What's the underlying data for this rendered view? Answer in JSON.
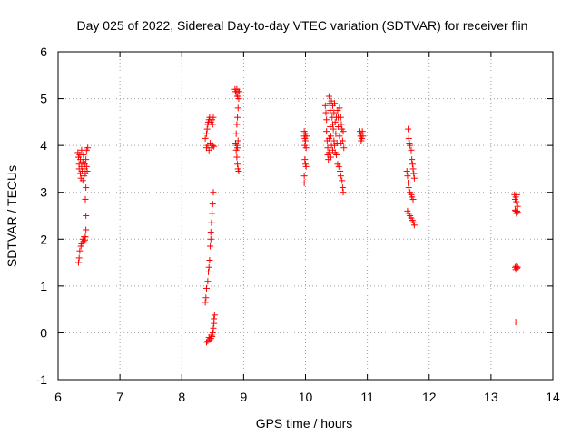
{
  "chart_data": {
    "type": "scatter",
    "title": "Day 025 of 2022, Sidereal Day-to-day VTEC variation (SDTVAR) for receiver flin",
    "xlabel": "GPS time / hours",
    "ylabel": "SDTVAR / TECUs",
    "xlim": [
      6,
      14
    ],
    "ylim": [
      -1,
      6
    ],
    "xticks": [
      "6",
      "7",
      "8",
      "9",
      "10",
      "11",
      "12",
      "13",
      "14"
    ],
    "yticks": [
      "-1",
      "0",
      "1",
      "2",
      "3",
      "4",
      "5",
      "6"
    ],
    "grid": true,
    "marker": "+",
    "color": "#ff0000",
    "series": [
      {
        "name": "SDTVAR",
        "points": [
          [
            6.32,
            3.85
          ],
          [
            6.33,
            3.75
          ],
          [
            6.34,
            3.6
          ],
          [
            6.34,
            3.5
          ],
          [
            6.35,
            3.8
          ],
          [
            6.36,
            3.4
          ],
          [
            6.36,
            3.7
          ],
          [
            6.37,
            3.3
          ],
          [
            6.38,
            3.55
          ],
          [
            6.38,
            3.9
          ],
          [
            6.39,
            3.45
          ],
          [
            6.4,
            3.65
          ],
          [
            6.4,
            3.25
          ],
          [
            6.41,
            3.8
          ],
          [
            6.42,
            3.5
          ],
          [
            6.42,
            3.35
          ],
          [
            6.43,
            3.6
          ],
          [
            6.44,
            3.4
          ],
          [
            6.45,
            3.7
          ],
          [
            6.46,
            3.9
          ],
          [
            6.46,
            3.55
          ],
          [
            6.47,
            3.45
          ],
          [
            6.48,
            3.95
          ],
          [
            6.45,
            3.1
          ],
          [
            6.44,
            2.85
          ],
          [
            6.45,
            2.5
          ],
          [
            6.45,
            2.2
          ],
          [
            6.44,
            2.05
          ],
          [
            6.43,
            1.98
          ],
          [
            6.42,
            2.05
          ],
          [
            6.41,
            1.95
          ],
          [
            6.4,
            2.0
          ],
          [
            6.38,
            1.9
          ],
          [
            6.37,
            1.85
          ],
          [
            6.35,
            1.75
          ],
          [
            6.34,
            1.6
          ],
          [
            6.33,
            1.5
          ],
          [
            8.38,
            0.65
          ],
          [
            8.39,
            0.75
          ],
          [
            8.4,
            0.95
          ],
          [
            8.42,
            1.1
          ],
          [
            8.43,
            1.3
          ],
          [
            8.44,
            1.4
          ],
          [
            8.45,
            1.55
          ],
          [
            8.46,
            1.85
          ],
          [
            8.47,
            2.0
          ],
          [
            8.47,
            2.15
          ],
          [
            8.48,
            2.35
          ],
          [
            8.49,
            2.55
          ],
          [
            8.5,
            2.75
          ],
          [
            8.51,
            3.0
          ],
          [
            8.52,
            0.2
          ],
          [
            8.52,
            0.3
          ],
          [
            8.53,
            0.38
          ],
          [
            8.51,
            0.1
          ],
          [
            8.5,
            0.0
          ],
          [
            8.49,
            -0.08
          ],
          [
            8.47,
            -0.12
          ],
          [
            8.45,
            -0.15
          ],
          [
            8.42,
            -0.18
          ],
          [
            8.4,
            -0.2
          ],
          [
            8.44,
            -0.1
          ],
          [
            8.48,
            -0.05
          ],
          [
            8.38,
            4.15
          ],
          [
            8.4,
            4.25
          ],
          [
            8.41,
            4.35
          ],
          [
            8.42,
            4.45
          ],
          [
            8.43,
            4.5
          ],
          [
            8.44,
            4.55
          ],
          [
            8.45,
            4.6
          ],
          [
            8.47,
            4.5
          ],
          [
            8.49,
            4.55
          ],
          [
            8.5,
            4.45
          ],
          [
            8.51,
            4.6
          ],
          [
            8.4,
            3.95
          ],
          [
            8.42,
            4.0
          ],
          [
            8.44,
            3.9
          ],
          [
            8.46,
            4.05
          ],
          [
            8.48,
            3.95
          ],
          [
            8.5,
            4.0
          ],
          [
            8.52,
            3.98
          ],
          [
            8.86,
            5.2
          ],
          [
            8.87,
            5.15
          ],
          [
            8.88,
            5.1
          ],
          [
            8.89,
            5.2
          ],
          [
            8.9,
            5.05
          ],
          [
            8.91,
            5.15
          ],
          [
            8.92,
            5.0
          ],
          [
            8.93,
            5.15
          ],
          [
            8.91,
            4.8
          ],
          [
            8.9,
            4.6
          ],
          [
            8.89,
            4.45
          ],
          [
            8.88,
            4.25
          ],
          [
            8.87,
            4.05
          ],
          [
            8.88,
            3.9
          ],
          [
            8.89,
            3.75
          ],
          [
            8.9,
            3.6
          ],
          [
            8.91,
            3.5
          ],
          [
            8.92,
            3.45
          ],
          [
            8.89,
            4.0
          ],
          [
            8.9,
            3.95
          ],
          [
            8.91,
            4.1
          ],
          [
            9.98,
            4.3
          ],
          [
            9.98,
            4.2
          ],
          [
            9.99,
            4.15
          ],
          [
            9.99,
            4.0
          ],
          [
            10.0,
            4.25
          ],
          [
            10.0,
            4.1
          ],
          [
            10.01,
            3.95
          ],
          [
            10.02,
            4.2
          ],
          [
            9.99,
            3.7
          ],
          [
            10.0,
            3.6
          ],
          [
            10.01,
            3.55
          ],
          [
            9.98,
            3.35
          ],
          [
            9.98,
            3.2
          ],
          [
            10.32,
            4.85
          ],
          [
            10.33,
            4.7
          ],
          [
            10.34,
            4.55
          ],
          [
            10.34,
            4.3
          ],
          [
            10.35,
            4.1
          ],
          [
            10.36,
            3.95
          ],
          [
            10.36,
            3.8
          ],
          [
            10.37,
            3.7
          ],
          [
            10.38,
            3.85
          ],
          [
            10.38,
            5.05
          ],
          [
            10.39,
            4.9
          ],
          [
            10.4,
            4.75
          ],
          [
            10.4,
            4.4
          ],
          [
            10.41,
            4.2
          ],
          [
            10.42,
            4.95
          ],
          [
            10.42,
            4.0
          ],
          [
            10.43,
            4.6
          ],
          [
            10.44,
            4.85
          ],
          [
            10.44,
            3.9
          ],
          [
            10.45,
            4.35
          ],
          [
            10.46,
            4.7
          ],
          [
            10.46,
            4.1
          ],
          [
            10.47,
            4.9
          ],
          [
            10.48,
            3.85
          ],
          [
            10.48,
            4.5
          ],
          [
            10.49,
            4.25
          ],
          [
            10.5,
            3.8
          ],
          [
            10.5,
            4.6
          ],
          [
            10.51,
            4.05
          ],
          [
            10.52,
            4.75
          ],
          [
            10.52,
            3.6
          ],
          [
            10.53,
            4.4
          ],
          [
            10.54,
            3.55
          ],
          [
            10.55,
            4.8
          ],
          [
            10.55,
            4.2
          ],
          [
            10.56,
            3.45
          ],
          [
            10.57,
            4.6
          ],
          [
            10.57,
            3.35
          ],
          [
            10.58,
            4.45
          ],
          [
            10.59,
            3.25
          ],
          [
            10.6,
            4.1
          ],
          [
            10.6,
            3.1
          ],
          [
            10.61,
            4.3
          ],
          [
            10.61,
            3.0
          ],
          [
            10.62,
            3.95
          ],
          [
            10.38,
            4.15
          ],
          [
            10.41,
            3.75
          ],
          [
            10.44,
            4.45
          ],
          [
            10.47,
            4.0
          ],
          [
            10.53,
            4.6
          ],
          [
            10.57,
            4.05
          ],
          [
            10.59,
            4.35
          ],
          [
            10.88,
            4.3
          ],
          [
            10.89,
            4.2
          ],
          [
            10.9,
            4.25
          ],
          [
            10.9,
            4.1
          ],
          [
            10.91,
            4.15
          ],
          [
            10.92,
            4.3
          ],
          [
            10.93,
            4.2
          ],
          [
            11.66,
            4.35
          ],
          [
            11.67,
            4.15
          ],
          [
            11.68,
            4.05
          ],
          [
            11.69,
            4.0
          ],
          [
            11.71,
            3.9
          ],
          [
            11.72,
            3.7
          ],
          [
            11.73,
            3.6
          ],
          [
            11.74,
            3.5
          ],
          [
            11.75,
            3.4
          ],
          [
            11.76,
            3.3
          ],
          [
            11.64,
            3.45
          ],
          [
            11.65,
            3.35
          ],
          [
            11.66,
            3.2
          ],
          [
            11.67,
            3.1
          ],
          [
            11.69,
            3.0
          ],
          [
            11.71,
            2.95
          ],
          [
            11.72,
            2.9
          ],
          [
            11.74,
            2.85
          ],
          [
            11.65,
            2.6
          ],
          [
            11.67,
            2.55
          ],
          [
            11.69,
            2.5
          ],
          [
            11.71,
            2.45
          ],
          [
            11.73,
            2.4
          ],
          [
            11.75,
            2.35
          ],
          [
            11.76,
            2.3
          ],
          [
            13.38,
            2.95
          ],
          [
            13.39,
            2.85
          ],
          [
            13.4,
            2.9
          ],
          [
            13.41,
            2.8
          ],
          [
            13.42,
            2.95
          ],
          [
            13.43,
            2.7
          ],
          [
            13.4,
            2.6
          ],
          [
            13.41,
            2.55
          ],
          [
            13.42,
            2.6
          ],
          [
            13.43,
            2.58
          ],
          [
            13.39,
            2.62
          ],
          [
            13.39,
            1.4
          ],
          [
            13.4,
            1.35
          ],
          [
            13.41,
            1.42
          ],
          [
            13.42,
            1.38
          ],
          [
            13.43,
            1.4
          ],
          [
            13.4,
            0.23
          ]
        ]
      }
    ]
  }
}
